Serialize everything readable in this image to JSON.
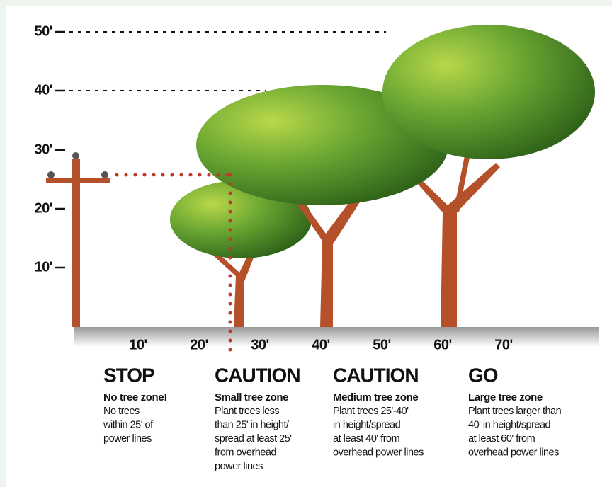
{
  "y_axis": {
    "labels": [
      "50'",
      "40'",
      "30'",
      "20'",
      "10'"
    ]
  },
  "x_axis": {
    "labels": [
      "10'",
      "20'",
      "30'",
      "40'",
      "50'",
      "60'",
      "70'"
    ]
  },
  "zones": [
    {
      "title": "STOP",
      "subtitle": "No tree zone!",
      "lines": [
        "No trees",
        "within 25' of",
        "power lines"
      ]
    },
    {
      "title": "CAUTION",
      "subtitle": "Small tree zone",
      "lines": [
        "Plant trees less",
        "than 25' in height/",
        "spread at least 25'",
        "from overhead",
        "power lines"
      ]
    },
    {
      "title": "CAUTION",
      "subtitle": "Medium tree zone",
      "lines": [
        "Plant trees 25'-40'",
        "in height/spread",
        "at least 40' from",
        "overhead power lines"
      ]
    },
    {
      "title": "GO",
      "subtitle": "Large tree zone",
      "lines": [
        "Plant trees larger than",
        "40' in height/spread",
        "at least 60' from",
        "overhead power lines"
      ]
    }
  ]
}
